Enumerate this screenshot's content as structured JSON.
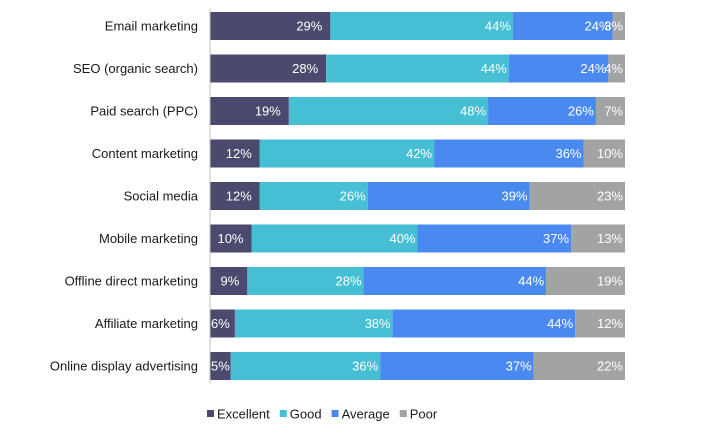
{
  "chart_data": {
    "type": "bar",
    "orientation": "horizontal",
    "stacked": true,
    "percent": true,
    "categories": [
      "Email marketing",
      "SEO (organic search)",
      "Paid search (PPC)",
      "Content marketing",
      "Social media",
      "Mobile marketing",
      "Offline direct marketing",
      "Affiliate marketing",
      "Online display advertising"
    ],
    "series": [
      {
        "name": "Excellent",
        "color": "#4b4a6e",
        "values": [
          29,
          28,
          19,
          12,
          12,
          10,
          9,
          6,
          5
        ]
      },
      {
        "name": "Good",
        "color": "#46bfd5",
        "values": [
          44,
          44,
          48,
          42,
          26,
          40,
          28,
          38,
          36
        ]
      },
      {
        "name": "Average",
        "color": "#4a8af0",
        "values": [
          24,
          24,
          26,
          36,
          39,
          37,
          44,
          44,
          37
        ]
      },
      {
        "name": "Poor",
        "color": "#a3a3a3",
        "values": [
          3,
          4,
          7,
          10,
          23,
          13,
          19,
          12,
          22
        ]
      }
    ],
    "xlim": [
      0,
      100
    ],
    "value_format": "{v}%",
    "grid": false,
    "legend": "bottom"
  }
}
